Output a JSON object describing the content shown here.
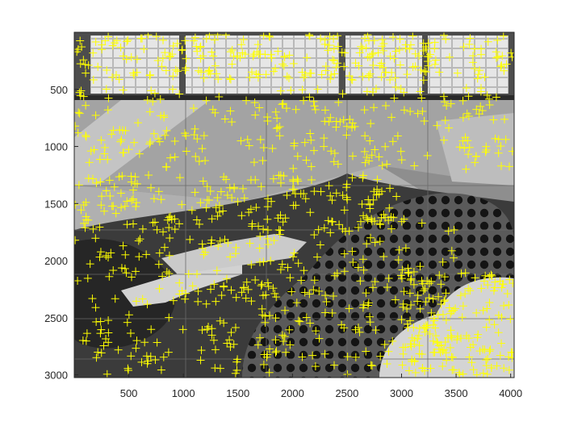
{
  "chart_data": {
    "type": "image-with-markers",
    "title": "",
    "xlabel": "",
    "ylabel": "",
    "xlim": [
      0,
      4032
    ],
    "ylim": [
      3024,
      0
    ],
    "y_direction": "reversed",
    "grid": false,
    "legend": "none",
    "x_ticks": [
      500,
      1000,
      1500,
      2000,
      2500,
      3000,
      3500,
      4000
    ],
    "x_tick_labels": [
      "500",
      "1000",
      "1500",
      "2000",
      "2500",
      "3000",
      "3500",
      "4000"
    ],
    "y_ticks": [
      500,
      1000,
      1500,
      2000,
      2500,
      3000
    ],
    "y_tick_labels": [
      "500",
      "1000",
      "1500",
      "2000",
      "2500",
      "3000"
    ],
    "image": {
      "description_colors": {
        "background_gray": "#8a8a8a",
        "light_gray": "#c8c8c8",
        "dark_gray": "#3a3a3a",
        "near_black": "#1a1a1a"
      }
    },
    "markers": {
      "symbol": "+",
      "color": "#ffff00",
      "series": [
        {
          "region": "windows-top",
          "x_range": [
            0,
            4032
          ],
          "y_range": [
            20,
            420
          ],
          "count": 260
        },
        {
          "region": "upper-wall",
          "x_range": [
            0,
            4032
          ],
          "y_range": [
            480,
            1200
          ],
          "count": 230
        },
        {
          "region": "middle-band",
          "x_range": [
            0,
            3000
          ],
          "y_range": [
            1250,
            1750
          ],
          "count": 180
        },
        {
          "region": "lower-left",
          "x_range": [
            0,
            1800
          ],
          "y_range": [
            1800,
            3000
          ],
          "count": 160
        },
        {
          "region": "dotted-panel",
          "x_range": [
            1700,
            3500
          ],
          "y_range": [
            1600,
            3000
          ],
          "count": 170
        },
        {
          "region": "right-cloud",
          "x_range": [
            3000,
            4032
          ],
          "y_range": [
            2100,
            3000
          ],
          "count": 150
        }
      ]
    }
  },
  "colors": {
    "marker": "#ffff00",
    "axis": "#262626",
    "figure_background": "#ffffff"
  }
}
